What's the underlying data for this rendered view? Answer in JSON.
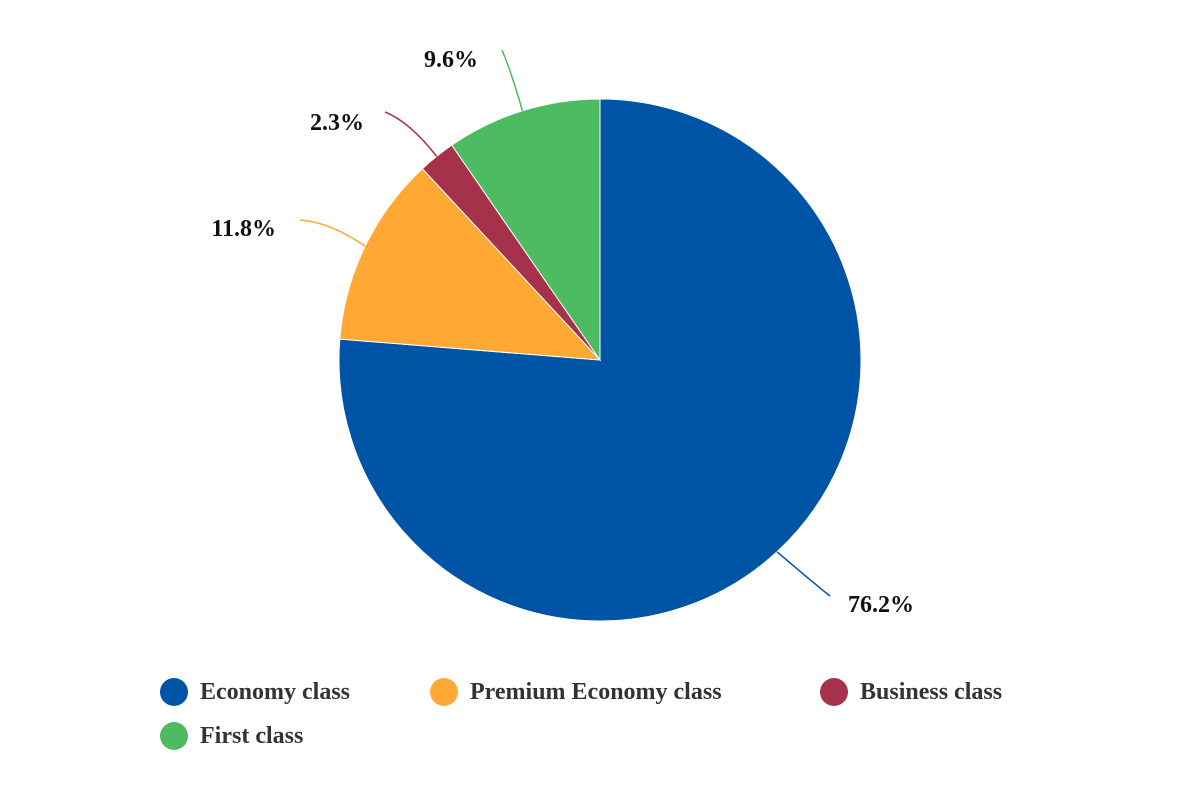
{
  "chart_data": {
    "type": "pie",
    "title": "",
    "legend_position": "bottom",
    "start_angle_deg": 0,
    "direction": "clockwise",
    "slices": [
      {
        "label": "Economy class",
        "value": 76.2,
        "value_label": "76.2%",
        "color": "#0054a6"
      },
      {
        "label": "Premium Economy class",
        "value": 11.8,
        "value_label": "11.8%",
        "color": "#ffa833"
      },
      {
        "label": "Business class",
        "value": 2.3,
        "value_label": "2.3%",
        "color": "#a5314a"
      },
      {
        "label": "First class",
        "value": 9.6,
        "value_label": "9.6%",
        "color": "#4cbb62"
      }
    ]
  }
}
